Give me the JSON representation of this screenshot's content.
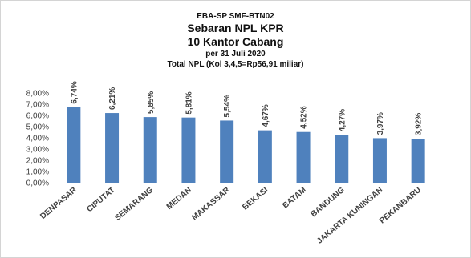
{
  "chart_data": {
    "type": "bar",
    "title_lines": [
      "EBA-SP SMF-BTN02",
      "Sebaran NPL KPR",
      "10 Kantor Cabang",
      "per 31 Juli  2020",
      "Total  NPL (Kol 3,4,5=Rp56,91 miliar)"
    ],
    "categories": [
      "DENPASAR",
      "CIPUTAT",
      "SEMARANG",
      "MEDAN",
      "MAKASSAR",
      "BEKASI",
      "BATAM",
      "BANDUNG",
      "JAKARTA KUNINGAN",
      "PEKANBARU"
    ],
    "values": [
      6.74,
      6.21,
      5.85,
      5.81,
      5.54,
      4.67,
      4.52,
      4.27,
      3.97,
      3.92
    ],
    "data_labels": [
      "6,74%",
      "6,21%",
      "5,85%",
      "5,81%",
      "5,54%",
      "4,67%",
      "4,52%",
      "4,27%",
      "3,97%",
      "3,92%"
    ],
    "y_ticks": [
      0,
      1,
      2,
      3,
      4,
      5,
      6,
      7,
      8
    ],
    "y_tick_labels": [
      "0,00%",
      "1,00%",
      "2,00%",
      "3,00%",
      "4,00%",
      "5,00%",
      "6,00%",
      "7,00%",
      "8,00%"
    ],
    "ylim": [
      0,
      8
    ],
    "grid": false,
    "legend": "none",
    "bar_color": "#4f81bd"
  }
}
